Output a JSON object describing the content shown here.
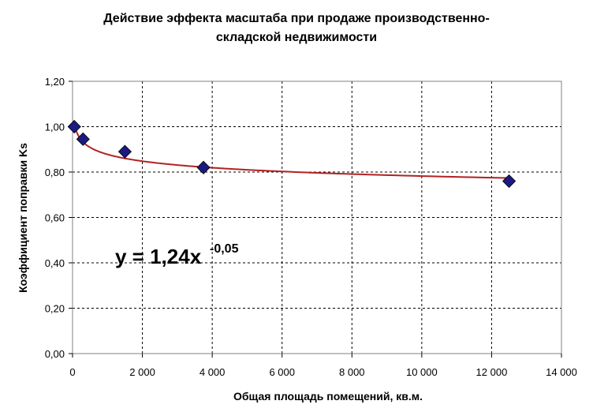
{
  "chart_data": {
    "type": "scatter",
    "title_lines": [
      "Действие эффекта масштаба при продаже производственно-",
      "складской недвижимости"
    ],
    "xlabel": "Общая площадь помещений, кв.м.",
    "ylabel": "Коэффициент поправки Ks",
    "xlim": [
      0,
      14000
    ],
    "ylim": [
      0,
      1.2
    ],
    "x_ticks": [
      0,
      2000,
      4000,
      6000,
      8000,
      10000,
      12000,
      14000
    ],
    "x_tick_labels": [
      "0",
      "2 000",
      "4 000",
      "6 000",
      "8 000",
      "10 000",
      "12 000",
      "14 000"
    ],
    "y_ticks": [
      0,
      0.2,
      0.4,
      0.6,
      0.8,
      1.0,
      1.2
    ],
    "y_tick_labels": [
      "0,00",
      "0,20",
      "0,40",
      "0,60",
      "0,80",
      "1,00",
      "1,20"
    ],
    "grid": true,
    "series": [
      {
        "x": [
          50,
          300,
          1500,
          3750,
          12500
        ],
        "y": [
          1.0,
          0.945,
          0.89,
          0.82,
          0.76
        ],
        "marker": "diamond",
        "color": "#1a1a80"
      }
    ],
    "trendline": {
      "type": "power",
      "a": 1.24,
      "b": -0.05,
      "color": "#b22222",
      "equation_main": "y = 1,24x",
      "equation_exp": "-0,05"
    }
  }
}
